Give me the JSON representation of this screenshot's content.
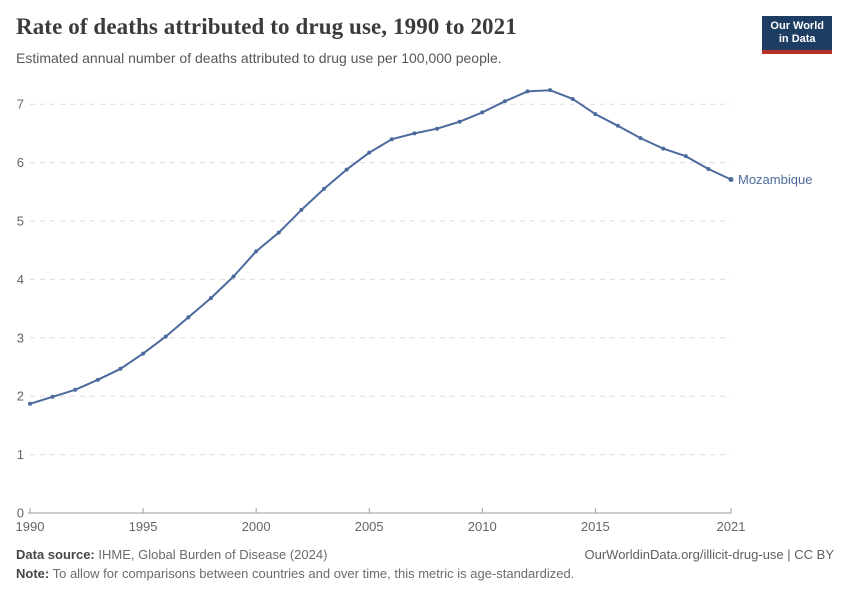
{
  "accent_color": "#4c6a9d",
  "header": {
    "title": "Rate of deaths attributed to drug use, 1990 to 2021",
    "subtitle": "Estimated annual number of deaths attributed to drug use per 100,000 people.",
    "logo": {
      "line1": "Our World",
      "line2": "in Data",
      "bg_color": "#1d3d63",
      "bar_color": "#b5322b"
    }
  },
  "chart_data": {
    "type": "line",
    "title": "Rate of deaths attributed to drug use, 1990 to 2021",
    "xlabel": "",
    "ylabel": "",
    "x": [
      1990,
      1991,
      1992,
      1993,
      1994,
      1995,
      1996,
      1997,
      1998,
      1999,
      2000,
      2001,
      2002,
      2003,
      2004,
      2005,
      2006,
      2007,
      2008,
      2009,
      2010,
      2011,
      2012,
      2013,
      2014,
      2015,
      2016,
      2017,
      2018,
      2019,
      2020,
      2021
    ],
    "series": [
      {
        "name": "Mozambique",
        "color": "#4c6a9d",
        "values": [
          1.87,
          1.99,
          2.11,
          2.28,
          2.47,
          2.73,
          3.02,
          3.35,
          3.68,
          4.05,
          4.48,
          4.8,
          5.19,
          5.55,
          5.88,
          6.17,
          6.4,
          6.5,
          6.58,
          6.7,
          6.86,
          7.05,
          7.22,
          7.24,
          7.09,
          6.83,
          6.63,
          6.42,
          6.24,
          6.11,
          5.89,
          5.71
        ]
      }
    ],
    "end_label": "Mozambique",
    "x_ticks": [
      1990,
      1995,
      2000,
      2005,
      2010,
      2015,
      2021
    ],
    "y_ticks": [
      0,
      1,
      2,
      3,
      4,
      5,
      6,
      7
    ],
    "xlim": [
      1990,
      2021
    ],
    "ylim": [
      0,
      7.5
    ],
    "grid": "horizontal-dashed",
    "legend": "inline-end-label",
    "grid_color": "#dcdcdc",
    "axis_color": "#9b9b9b",
    "tick_label_color": "#666666"
  },
  "footer": {
    "source_label": "Data source:",
    "source_text": " IHME, Global Burden of Disease (2024)",
    "link_text": "OurWorldinData.org/illicit-drug-use | CC BY",
    "note_label": "Note:",
    "note_text": " To allow for comparisons between countries and over time, this metric is age-standardized."
  }
}
